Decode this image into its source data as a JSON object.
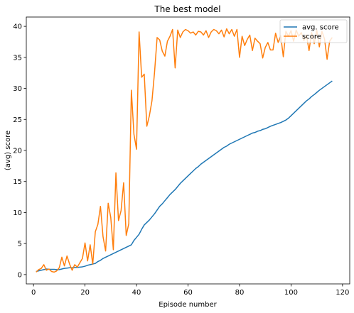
{
  "chart_data": {
    "type": "line",
    "title": "The best model",
    "xlabel": "Episode number",
    "ylabel": "(avg) score",
    "xlim": [
      -2.8,
      122.8
    ],
    "ylim": [
      -1.5,
      41.5
    ],
    "x_ticks": [
      0,
      20,
      40,
      60,
      80,
      100,
      120
    ],
    "y_ticks": [
      0,
      5,
      10,
      15,
      20,
      25,
      30,
      35,
      40
    ],
    "x_tick_labels": [
      "0",
      "20",
      "40",
      "60",
      "80",
      "100",
      "120"
    ],
    "y_tick_labels": [
      "0",
      "5",
      "10",
      "15",
      "20",
      "25",
      "30",
      "35",
      "40"
    ],
    "legend_position": "top-right",
    "grid": false,
    "series": [
      {
        "name": "avg. score",
        "color": "#1f77b4",
        "x": [
          1,
          2,
          3,
          4,
          5,
          6,
          7,
          8,
          9,
          10,
          11,
          12,
          13,
          14,
          15,
          16,
          17,
          18,
          19,
          20,
          21,
          22,
          23,
          24,
          25,
          26,
          27,
          28,
          29,
          30,
          31,
          32,
          33,
          34,
          35,
          36,
          37,
          38,
          39,
          40,
          41,
          42,
          43,
          44,
          45,
          46,
          47,
          48,
          49,
          50,
          51,
          52,
          53,
          54,
          55,
          56,
          57,
          58,
          59,
          60,
          61,
          62,
          63,
          64,
          65,
          66,
          67,
          68,
          69,
          70,
          71,
          72,
          73,
          74,
          75,
          76,
          77,
          78,
          79,
          80,
          81,
          82,
          83,
          84,
          85,
          86,
          87,
          88,
          89,
          90,
          91,
          92,
          93,
          94,
          95,
          96,
          97,
          98,
          99,
          100,
          101,
          102,
          103,
          104,
          105,
          106,
          107,
          108,
          109,
          110,
          111,
          112,
          113,
          114,
          115,
          116
        ],
        "values": [
          0.5,
          0.6,
          0.7,
          0.8,
          0.9,
          0.85,
          0.85,
          0.85,
          0.8,
          0.8,
          0.9,
          1.0,
          1.05,
          1.1,
          1.1,
          1.15,
          1.15,
          1.2,
          1.25,
          1.35,
          1.5,
          1.6,
          1.7,
          1.8,
          2.1,
          2.3,
          2.6,
          2.8,
          3.0,
          3.2,
          3.4,
          3.6,
          3.8,
          4.0,
          4.2,
          4.4,
          4.6,
          4.8,
          5.5,
          6.0,
          6.5,
          7.3,
          8.0,
          8.4,
          8.8,
          9.3,
          9.8,
          10.4,
          11.0,
          11.4,
          11.9,
          12.4,
          12.9,
          13.3,
          13.7,
          14.2,
          14.7,
          15.1,
          15.5,
          15.9,
          16.3,
          16.7,
          17.1,
          17.4,
          17.8,
          18.1,
          18.4,
          18.7,
          19.0,
          19.3,
          19.6,
          19.9,
          20.2,
          20.5,
          20.7,
          21.0,
          21.2,
          21.4,
          21.6,
          21.8,
          22.0,
          22.2,
          22.4,
          22.6,
          22.8,
          22.9,
          23.1,
          23.2,
          23.4,
          23.5,
          23.7,
          23.9,
          24.05,
          24.2,
          24.35,
          24.5,
          24.7,
          24.9,
          25.2,
          25.6,
          26.0,
          26.4,
          26.8,
          27.2,
          27.6,
          28.0,
          28.3,
          28.7,
          29.0,
          29.35,
          29.7,
          30.0,
          30.3,
          30.6,
          30.9,
          31.2
        ]
      },
      {
        "name": "score",
        "color": "#ff7f0e",
        "x": [
          1,
          2,
          3,
          4,
          5,
          6,
          7,
          8,
          9,
          10,
          11,
          12,
          13,
          14,
          15,
          16,
          17,
          18,
          19,
          20,
          21,
          22,
          23,
          24,
          25,
          26,
          27,
          28,
          29,
          30,
          31,
          32,
          33,
          34,
          35,
          36,
          37,
          38,
          39,
          40,
          41,
          42,
          43,
          44,
          45,
          46,
          47,
          48,
          49,
          50,
          51,
          52,
          53,
          54,
          55,
          56,
          57,
          58,
          59,
          60,
          61,
          62,
          63,
          64,
          65,
          66,
          67,
          68,
          69,
          70,
          71,
          72,
          73,
          74,
          75,
          76,
          77,
          78,
          79,
          80,
          81,
          82,
          83,
          84,
          85,
          86,
          87,
          88,
          89,
          90,
          91,
          92,
          93,
          94,
          95,
          96,
          97,
          98,
          99,
          100,
          101,
          102,
          103,
          104,
          105,
          106,
          107,
          108,
          109,
          110,
          111,
          112,
          113,
          114,
          115,
          116
        ],
        "values": [
          0.4,
          0.8,
          1.0,
          1.6,
          0.7,
          0.9,
          0.5,
          0.4,
          0.6,
          1.1,
          2.8,
          1.4,
          3.0,
          1.7,
          0.7,
          1.6,
          1.2,
          1.9,
          2.6,
          5.1,
          2.2,
          4.8,
          1.7,
          6.9,
          8.1,
          11.0,
          6.1,
          3.8,
          11.5,
          9.2,
          4.0,
          16.4,
          8.7,
          10.3,
          14.8,
          6.3,
          8.2,
          29.7,
          22.6,
          20.2,
          39.1,
          31.8,
          32.3,
          23.9,
          25.6,
          28.0,
          32.6,
          38.2,
          37.8,
          36.0,
          35.2,
          37.6,
          38.4,
          39.5,
          33.3,
          39.4,
          38.2,
          39.1,
          39.5,
          39.3,
          38.9,
          39.1,
          38.6,
          39.2,
          39.1,
          38.6,
          39.3,
          38.2,
          39.1,
          39.5,
          39.3,
          38.8,
          39.4,
          38.3,
          39.6,
          38.8,
          39.5,
          38.4,
          39.5,
          35.0,
          38.4,
          36.9,
          37.9,
          38.6,
          36.1,
          38.1,
          37.6,
          37.2,
          34.9,
          36.6,
          37.4,
          36.2,
          36.2,
          38.9,
          37.4,
          38.5,
          35.1,
          39.2,
          38.4,
          39.3,
          37.6,
          39.4,
          38.4,
          39.0,
          37.7,
          38.6,
          36.1,
          39.0,
          37.2,
          39.4,
          36.7,
          39.2,
          38.0,
          34.7,
          37.6,
          38.2
        ]
      }
    ]
  }
}
